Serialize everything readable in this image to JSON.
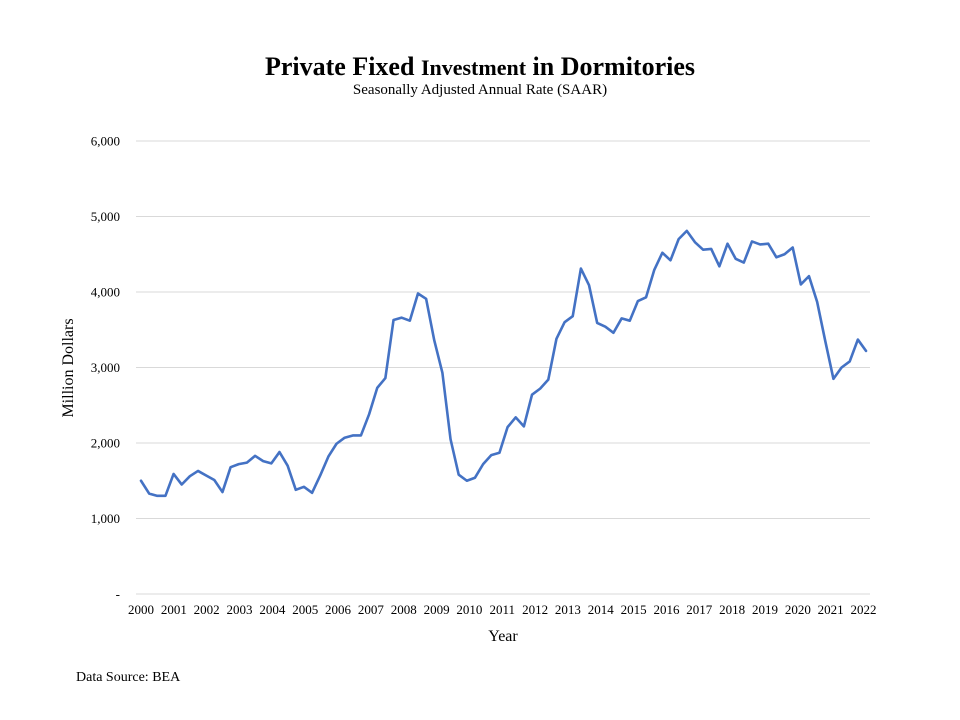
{
  "chart_data": {
    "type": "line",
    "title_parts": [
      "Private Fixed ",
      "Investment",
      " in Dormitories"
    ],
    "subtitle": "Seasonally Adjusted Annual Rate (SAAR)",
    "xlabel": "Year",
    "ylabel": "Million Dollars",
    "source": "Data Source: BEA",
    "ylim": [
      0,
      6000
    ],
    "y_ticks": [
      0,
      1000,
      2000,
      3000,
      4000,
      5000,
      6000
    ],
    "y_tick_labels": [
      "-",
      "1,000",
      "2,000",
      "3,000",
      "4,000",
      "5,000",
      "6,000"
    ],
    "x_tick_labels": [
      "2000",
      "2001",
      "2002",
      "2003",
      "2004",
      "2005",
      "2006",
      "2007",
      "2008",
      "2009",
      "2010",
      "2011",
      "2012",
      "2013",
      "2014",
      "2015",
      "2016",
      "2017",
      "2018",
      "2019",
      "2020",
      "2021",
      "2022"
    ],
    "grid": true,
    "line_color": "#4472c4",
    "series": [
      {
        "values": [
          1500,
          1330,
          1300,
          1300,
          1590,
          1450,
          1560,
          1630,
          1570,
          1510,
          1350,
          1680,
          1720,
          1740,
          1830,
          1760,
          1730,
          1880,
          1700,
          1380,
          1420,
          1340,
          1570,
          1820,
          1990,
          2070,
          2100,
          2100,
          2380,
          2730,
          2860,
          3630,
          3660,
          3620,
          3980,
          3910,
          3360,
          2930,
          2050,
          1580,
          1500,
          1540,
          1720,
          1840,
          1870,
          2210,
          2340,
          2220,
          2640,
          2720,
          2840,
          3380,
          3600,
          3680,
          4310,
          4090,
          3590,
          3540,
          3460,
          3650,
          3620,
          3880,
          3930,
          4290,
          4520,
          4420,
          4700,
          4810,
          4660,
          4560,
          4570,
          4340,
          4640,
          4440,
          4390,
          4670,
          4630,
          4640,
          4460,
          4500,
          4590,
          4100,
          4210,
          3870,
          3350,
          2850,
          3000,
          3080,
          3370,
          3220
        ]
      }
    ]
  }
}
